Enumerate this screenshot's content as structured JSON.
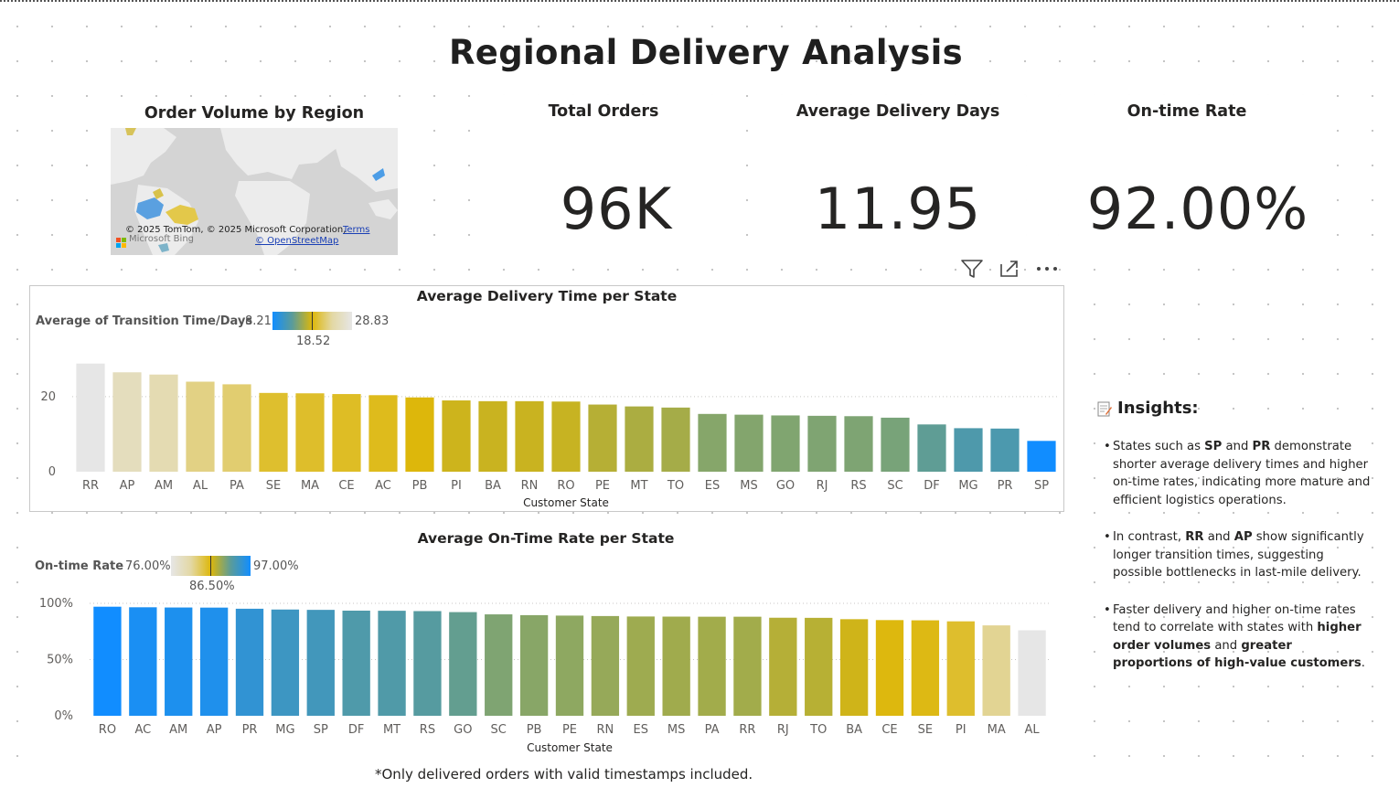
{
  "page": {
    "title": "Regional Delivery Analysis"
  },
  "map": {
    "title": "Order Volume by Region",
    "attribution": "© 2025 TomTom, © 2025 Microsoft Corporation,",
    "terms_link": "Terms",
    "osm_link": "© OpenStreetMap",
    "provider": "Microsoft Bing"
  },
  "kpis": [
    {
      "title": "Total Orders",
      "value": "96K"
    },
    {
      "title": "Average Delivery Days",
      "value": "11.95"
    },
    {
      "title": "On-time Rate",
      "value": "92.00%"
    }
  ],
  "visual_header": {
    "icons": [
      "filter-icon",
      "focus-mode-icon",
      "more-options-icon"
    ]
  },
  "colors": {
    "low": "#E6E6E6",
    "beige": "#E3D8A4",
    "gold": "#DDB70A",
    "olive": "#8FA860",
    "teal": "#5B9C99",
    "blue": "#118DFF"
  },
  "chart1": {
    "legend": {
      "label": "Average of Transition Time/Days",
      "min": "8.21",
      "mid": "18.52",
      "max": "28.83"
    }
  },
  "chart2": {
    "legend": {
      "label": "On-time Rate",
      "min": "76.00%",
      "mid": "86.50%",
      "max": "97.00%"
    }
  },
  "chart_data": [
    {
      "type": "bar",
      "title": "Average Delivery Time per State",
      "xlabel": "Customer State",
      "ylabel": "Average of Transition Time/Days",
      "ylim": [
        0,
        29
      ],
      "yticks": [
        "0",
        "20"
      ],
      "categories": [
        "RR",
        "AP",
        "AM",
        "AL",
        "PA",
        "SE",
        "MA",
        "CE",
        "AC",
        "PB",
        "PI",
        "BA",
        "RN",
        "RO",
        "PE",
        "MT",
        "TO",
        "ES",
        "MS",
        "GO",
        "RJ",
        "RS",
        "SC",
        "DF",
        "MG",
        "PR",
        "SP"
      ],
      "values": [
        28.83,
        26.5,
        25.9,
        24.0,
        23.3,
        21.0,
        20.9,
        20.7,
        20.4,
        19.8,
        19.0,
        18.8,
        18.8,
        18.7,
        17.9,
        17.4,
        17.1,
        15.4,
        15.2,
        15.0,
        14.9,
        14.8,
        14.4,
        12.6,
        11.6,
        11.5,
        8.21
      ]
    },
    {
      "type": "bar",
      "title": "Average On-Time Rate per State",
      "xlabel": "Customer State",
      "ylabel": "On-time Rate",
      "ylim": [
        0,
        100
      ],
      "yticks": [
        "0%",
        "50%",
        "100%"
      ],
      "categories": [
        "RO",
        "AC",
        "AM",
        "AP",
        "PR",
        "MG",
        "SP",
        "DF",
        "MT",
        "RS",
        "GO",
        "SC",
        "PB",
        "PE",
        "RN",
        "ES",
        "MS",
        "PA",
        "RR",
        "RJ",
        "TO",
        "BA",
        "CE",
        "SE",
        "PI",
        "MA",
        "AL"
      ],
      "values": [
        97.0,
        96.5,
        96.3,
        96.2,
        95.2,
        94.5,
        94.2,
        93.5,
        93.4,
        93.1,
        92.2,
        90.2,
        89.5,
        89.1,
        88.7,
        88.3,
        88.2,
        88.1,
        88.1,
        87.2,
        87.1,
        85.9,
        85.1,
        84.9,
        84.0,
        80.4,
        76.0
      ]
    }
  ],
  "insights": {
    "title": "Insights:",
    "items": [
      [
        {
          "t": "States such as ",
          "b": false
        },
        {
          "t": "SP",
          "b": true
        },
        {
          "t": " and ",
          "b": false
        },
        {
          "t": "PR",
          "b": true
        },
        {
          "t": " demonstrate shorter average delivery times and higher on-time rates, indicating more mature and efficient logistics operations.",
          "b": false
        }
      ],
      [
        {
          "t": "In contrast, ",
          "b": false
        },
        {
          "t": "RR",
          "b": true
        },
        {
          "t": " and ",
          "b": false
        },
        {
          "t": "AP",
          "b": true
        },
        {
          "t": " show significantly longer transition times, suggesting possible bottlenecks in last-mile delivery.",
          "b": false
        }
      ],
      [
        {
          "t": "Faster delivery and higher on-time rates tend to correlate with states with ",
          "b": false
        },
        {
          "t": "higher order volumes",
          "b": true
        },
        {
          "t": " and ",
          "b": false
        },
        {
          "t": "greater proportions of high-value customers",
          "b": true
        },
        {
          "t": ".",
          "b": false
        }
      ]
    ]
  },
  "footnote": "*Only delivered orders with valid timestamps included."
}
